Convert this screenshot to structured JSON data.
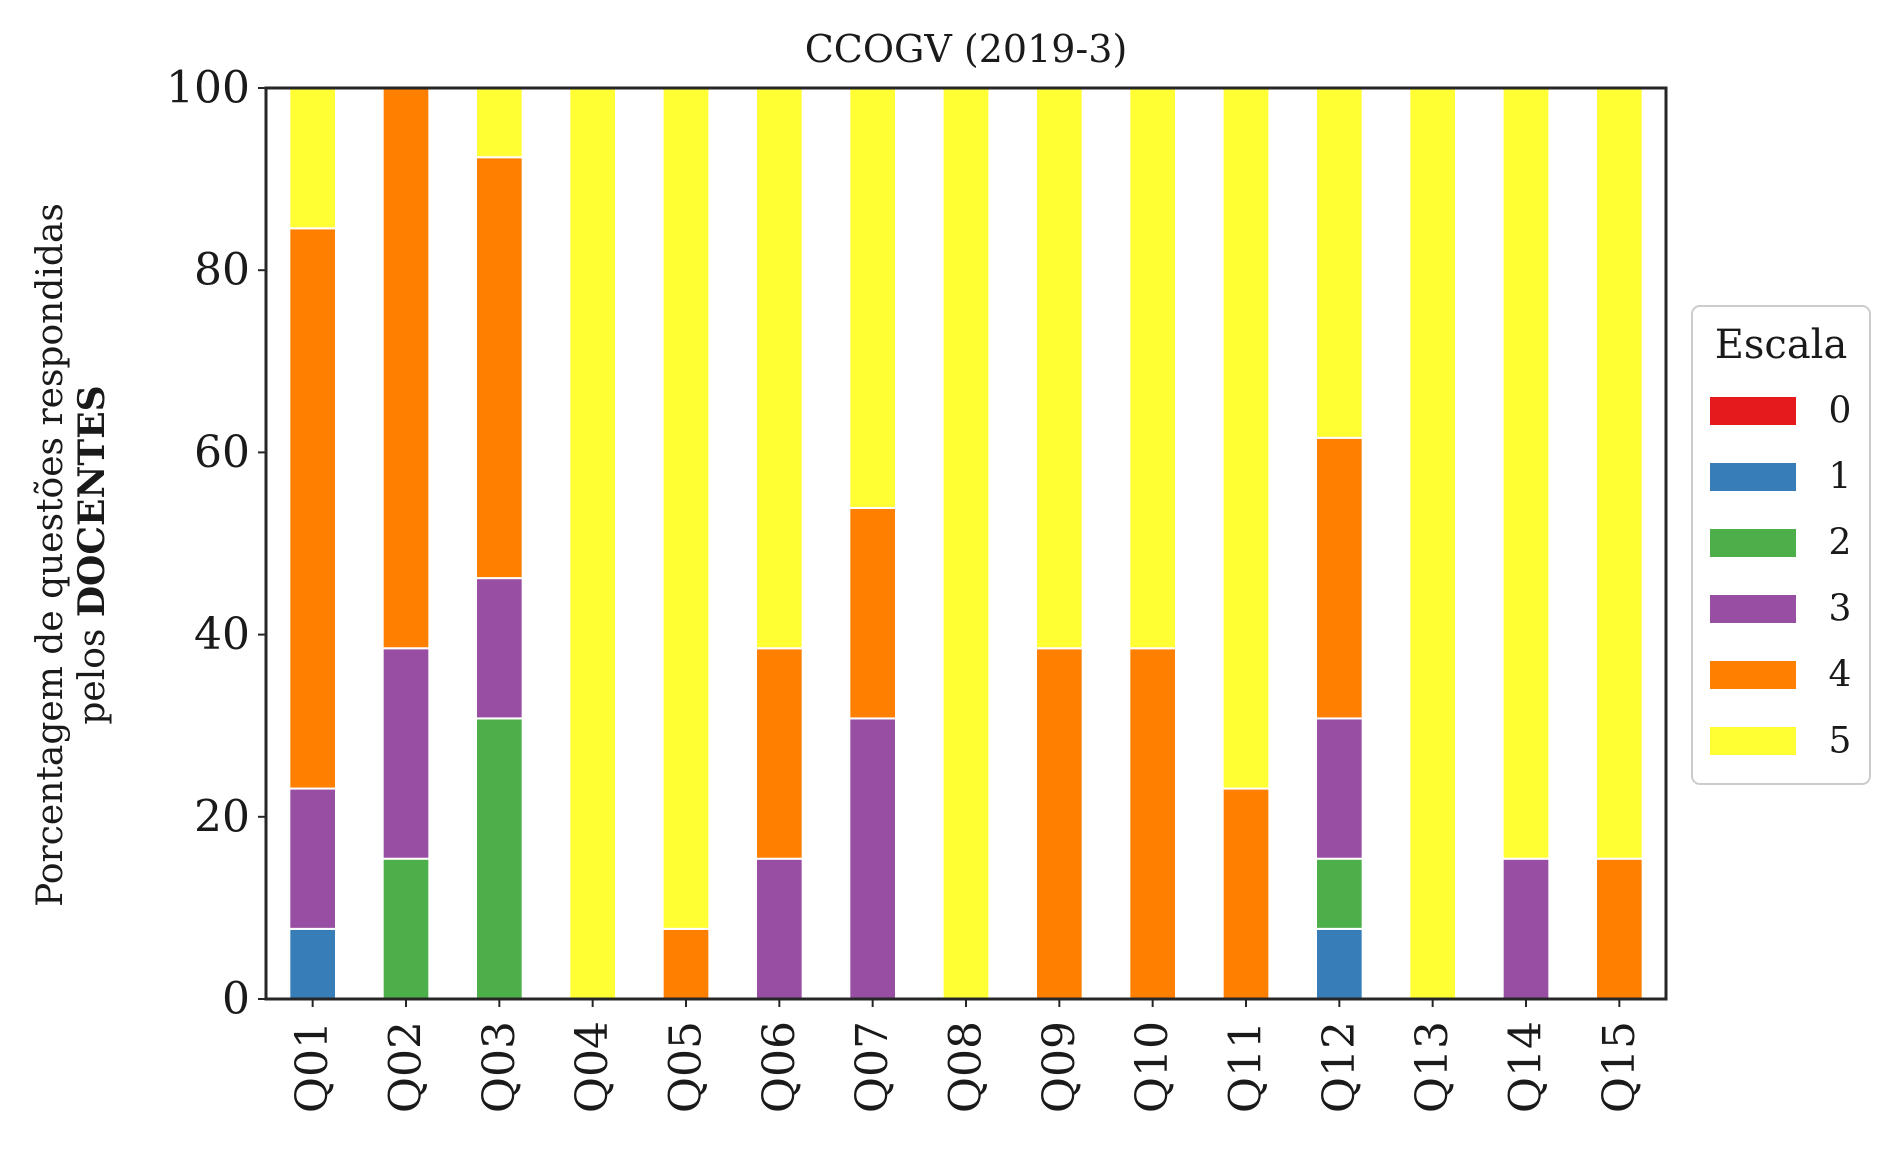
{
  "chart_data": {
    "type": "bar",
    "stacked": true,
    "title": "CCOGV (2019-3)",
    "ylabel_line1": "Porcentagem de questões respondidas",
    "ylabel_line2_prefix": "pelos ",
    "ylabel_line2_bold": "DOCENTES",
    "xlabel": "",
    "ylim": [
      0,
      100
    ],
    "yticks": [
      "0",
      "20",
      "40",
      "60",
      "80",
      "100"
    ],
    "grid": false,
    "legend_position": "center-right outside",
    "legend_title": "Escala",
    "categories": [
      "Q01",
      "Q02",
      "Q03",
      "Q04",
      "Q05",
      "Q06",
      "Q07",
      "Q08",
      "Q09",
      "Q10",
      "Q11",
      "Q12",
      "Q13",
      "Q14",
      "Q15"
    ],
    "series": [
      {
        "name": "0",
        "color": "#e41a1c",
        "values": [
          0,
          0,
          0,
          0,
          0,
          0,
          0,
          0,
          0,
          0,
          0,
          0,
          0,
          0,
          0
        ]
      },
      {
        "name": "1",
        "color": "#377eb8",
        "values": [
          7.7,
          0,
          0,
          0,
          0,
          0,
          0,
          0,
          0,
          0,
          0,
          7.7,
          0,
          0,
          0
        ]
      },
      {
        "name": "2",
        "color": "#4daf4a",
        "values": [
          0,
          15.4,
          30.8,
          0,
          0,
          0,
          0,
          0,
          0,
          0,
          0,
          7.7,
          0,
          0,
          0
        ]
      },
      {
        "name": "3",
        "color": "#984ea3",
        "values": [
          15.4,
          23.1,
          15.4,
          0,
          0,
          15.4,
          30.8,
          0,
          0,
          0,
          0,
          15.4,
          0,
          15.4,
          0
        ]
      },
      {
        "name": "4",
        "color": "#ff7f00",
        "values": [
          61.5,
          61.5,
          46.2,
          0,
          7.7,
          23.1,
          23.1,
          0,
          38.5,
          38.5,
          23.1,
          30.8,
          0,
          0,
          15.4
        ]
      },
      {
        "name": "5",
        "color": "#ffff33",
        "values": [
          15.4,
          0,
          7.7,
          100,
          92.3,
          61.5,
          46.2,
          100,
          61.5,
          61.5,
          76.9,
          38.5,
          100,
          84.6,
          84.6
        ]
      }
    ]
  }
}
